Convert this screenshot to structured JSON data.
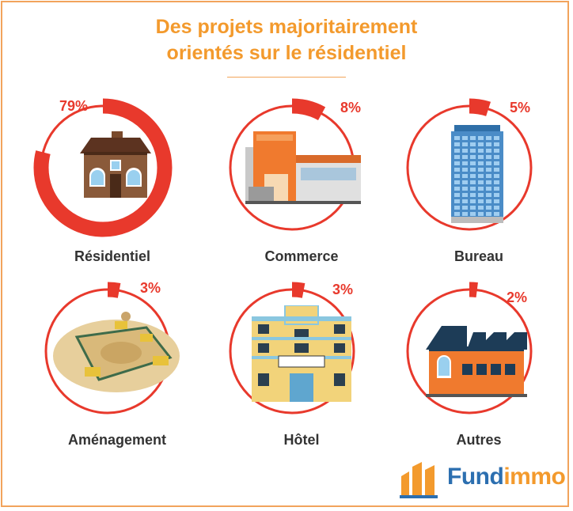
{
  "title": {
    "line1": "Des projets majoritairement",
    "line2": "orientés sur le résidentiel"
  },
  "colors": {
    "accent": "#e8392c",
    "title": "#f39a2d",
    "brand_blue": "#2c6fb0"
  },
  "chart_data": {
    "type": "pie",
    "title": "Des projets majoritairement orientés sur le résidentiel",
    "categories": [
      "Résidentiel",
      "Commerce",
      "Bureau",
      "Aménagement",
      "Hôtel",
      "Autres"
    ],
    "values": [
      79,
      8,
      5,
      3,
      3,
      2
    ],
    "labels": [
      "79%",
      "8%",
      "5%",
      "3%",
      "3%",
      "2%"
    ],
    "icons": [
      "house-icon",
      "shopping-center-icon",
      "office-tower-icon",
      "construction-site-icon",
      "hotel-icon",
      "factory-icon"
    ]
  },
  "brand": {
    "name_part1": "Fund",
    "name_part2": "immo"
  }
}
